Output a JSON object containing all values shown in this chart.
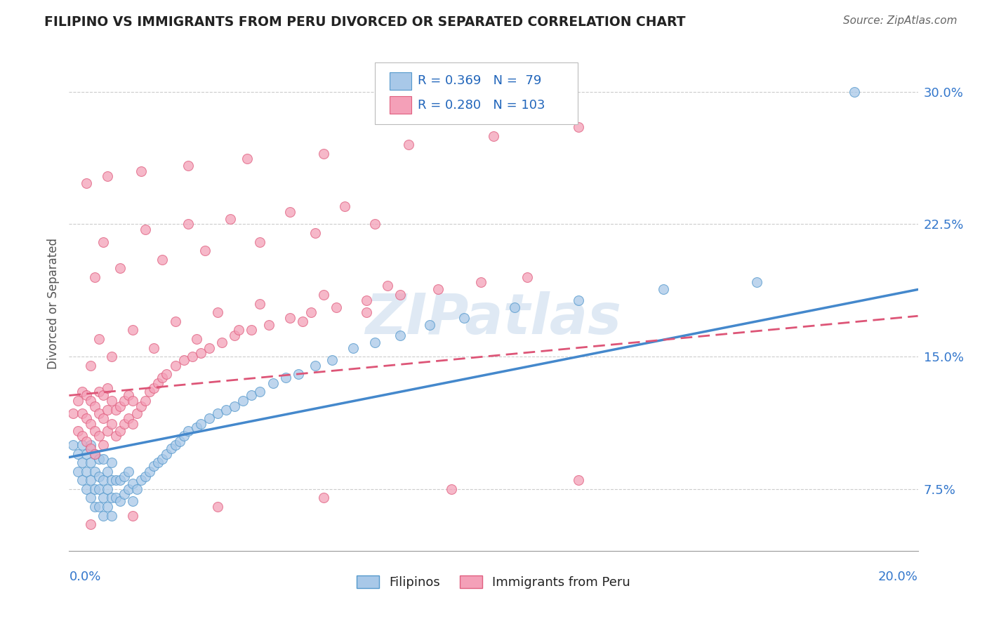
{
  "title": "FILIPINO VS IMMIGRANTS FROM PERU DIVORCED OR SEPARATED CORRELATION CHART",
  "source": "Source: ZipAtlas.com",
  "ylabel": "Divorced or Separated",
  "xmin": 0.0,
  "xmax": 0.2,
  "ymin": 0.04,
  "ymax": 0.32,
  "y_ticks": [
    0.075,
    0.15,
    0.225,
    0.3
  ],
  "y_tick_labels": [
    "7.5%",
    "15.0%",
    "22.5%",
    "30.0%"
  ],
  "legend_R1": "R = 0.369",
  "legend_N1": "N =  79",
  "legend_R2": "R = 0.280",
  "legend_N2": "N = 103",
  "color_blue": "#a8c8e8",
  "color_pink": "#f4a0b8",
  "color_blue_edge": "#5599cc",
  "color_pink_edge": "#e06080",
  "color_blue_line": "#4488cc",
  "color_pink_line": "#dd5577",
  "color_title": "#222222",
  "color_source": "#666666",
  "color_legend_text": "#2266bb",
  "color_ytick": "#3377cc",
  "watermark": "ZIPatlas",
  "blue_line_x0": 0.0,
  "blue_line_y0": 0.093,
  "blue_line_x1": 0.2,
  "blue_line_y1": 0.188,
  "pink_line_x0": 0.0,
  "pink_line_y0": 0.128,
  "pink_line_x1": 0.2,
  "pink_line_y1": 0.173,
  "blue_points_x": [
    0.001,
    0.002,
    0.002,
    0.003,
    0.003,
    0.003,
    0.004,
    0.004,
    0.004,
    0.005,
    0.005,
    0.005,
    0.005,
    0.006,
    0.006,
    0.006,
    0.006,
    0.007,
    0.007,
    0.007,
    0.007,
    0.008,
    0.008,
    0.008,
    0.008,
    0.009,
    0.009,
    0.009,
    0.01,
    0.01,
    0.01,
    0.01,
    0.011,
    0.011,
    0.012,
    0.012,
    0.013,
    0.013,
    0.014,
    0.014,
    0.015,
    0.015,
    0.016,
    0.017,
    0.018,
    0.019,
    0.02,
    0.021,
    0.022,
    0.023,
    0.024,
    0.025,
    0.026,
    0.027,
    0.028,
    0.03,
    0.031,
    0.033,
    0.035,
    0.037,
    0.039,
    0.041,
    0.043,
    0.045,
    0.048,
    0.051,
    0.054,
    0.058,
    0.062,
    0.067,
    0.072,
    0.078,
    0.085,
    0.093,
    0.105,
    0.12,
    0.14,
    0.162,
    0.185
  ],
  "blue_points_y": [
    0.1,
    0.085,
    0.095,
    0.08,
    0.09,
    0.1,
    0.075,
    0.085,
    0.095,
    0.07,
    0.08,
    0.09,
    0.1,
    0.065,
    0.075,
    0.085,
    0.095,
    0.065,
    0.075,
    0.082,
    0.092,
    0.06,
    0.07,
    0.08,
    0.092,
    0.065,
    0.075,
    0.085,
    0.06,
    0.07,
    0.08,
    0.09,
    0.07,
    0.08,
    0.068,
    0.08,
    0.072,
    0.082,
    0.075,
    0.085,
    0.068,
    0.078,
    0.075,
    0.08,
    0.082,
    0.085,
    0.088,
    0.09,
    0.092,
    0.095,
    0.098,
    0.1,
    0.102,
    0.105,
    0.108,
    0.11,
    0.112,
    0.115,
    0.118,
    0.12,
    0.122,
    0.125,
    0.128,
    0.13,
    0.135,
    0.138,
    0.14,
    0.145,
    0.148,
    0.155,
    0.158,
    0.162,
    0.168,
    0.172,
    0.178,
    0.182,
    0.188,
    0.192,
    0.3
  ],
  "pink_points_x": [
    0.001,
    0.002,
    0.002,
    0.003,
    0.003,
    0.003,
    0.004,
    0.004,
    0.004,
    0.005,
    0.005,
    0.005,
    0.006,
    0.006,
    0.006,
    0.007,
    0.007,
    0.007,
    0.008,
    0.008,
    0.008,
    0.009,
    0.009,
    0.009,
    0.01,
    0.01,
    0.011,
    0.011,
    0.012,
    0.012,
    0.013,
    0.013,
    0.014,
    0.014,
    0.015,
    0.015,
    0.016,
    0.017,
    0.018,
    0.019,
    0.02,
    0.021,
    0.022,
    0.023,
    0.025,
    0.027,
    0.029,
    0.031,
    0.033,
    0.036,
    0.039,
    0.043,
    0.047,
    0.052,
    0.057,
    0.063,
    0.07,
    0.078,
    0.087,
    0.097,
    0.108,
    0.007,
    0.015,
    0.025,
    0.035,
    0.045,
    0.06,
    0.075,
    0.005,
    0.01,
    0.02,
    0.03,
    0.04,
    0.055,
    0.07,
    0.008,
    0.018,
    0.028,
    0.038,
    0.052,
    0.065,
    0.006,
    0.012,
    0.022,
    0.032,
    0.045,
    0.058,
    0.072,
    0.004,
    0.009,
    0.017,
    0.028,
    0.042,
    0.06,
    0.08,
    0.1,
    0.12,
    0.005,
    0.015,
    0.035,
    0.06,
    0.09,
    0.12
  ],
  "pink_points_y": [
    0.118,
    0.108,
    0.125,
    0.105,
    0.118,
    0.13,
    0.102,
    0.115,
    0.128,
    0.098,
    0.112,
    0.125,
    0.095,
    0.108,
    0.122,
    0.105,
    0.118,
    0.13,
    0.1,
    0.115,
    0.128,
    0.108,
    0.12,
    0.132,
    0.112,
    0.125,
    0.105,
    0.12,
    0.108,
    0.122,
    0.112,
    0.125,
    0.115,
    0.128,
    0.112,
    0.125,
    0.118,
    0.122,
    0.125,
    0.13,
    0.132,
    0.135,
    0.138,
    0.14,
    0.145,
    0.148,
    0.15,
    0.152,
    0.155,
    0.158,
    0.162,
    0.165,
    0.168,
    0.172,
    0.175,
    0.178,
    0.182,
    0.185,
    0.188,
    0.192,
    0.195,
    0.16,
    0.165,
    0.17,
    0.175,
    0.18,
    0.185,
    0.19,
    0.145,
    0.15,
    0.155,
    0.16,
    0.165,
    0.17,
    0.175,
    0.215,
    0.222,
    0.225,
    0.228,
    0.232,
    0.235,
    0.195,
    0.2,
    0.205,
    0.21,
    0.215,
    0.22,
    0.225,
    0.248,
    0.252,
    0.255,
    0.258,
    0.262,
    0.265,
    0.27,
    0.275,
    0.28,
    0.055,
    0.06,
    0.065,
    0.07,
    0.075,
    0.08
  ]
}
